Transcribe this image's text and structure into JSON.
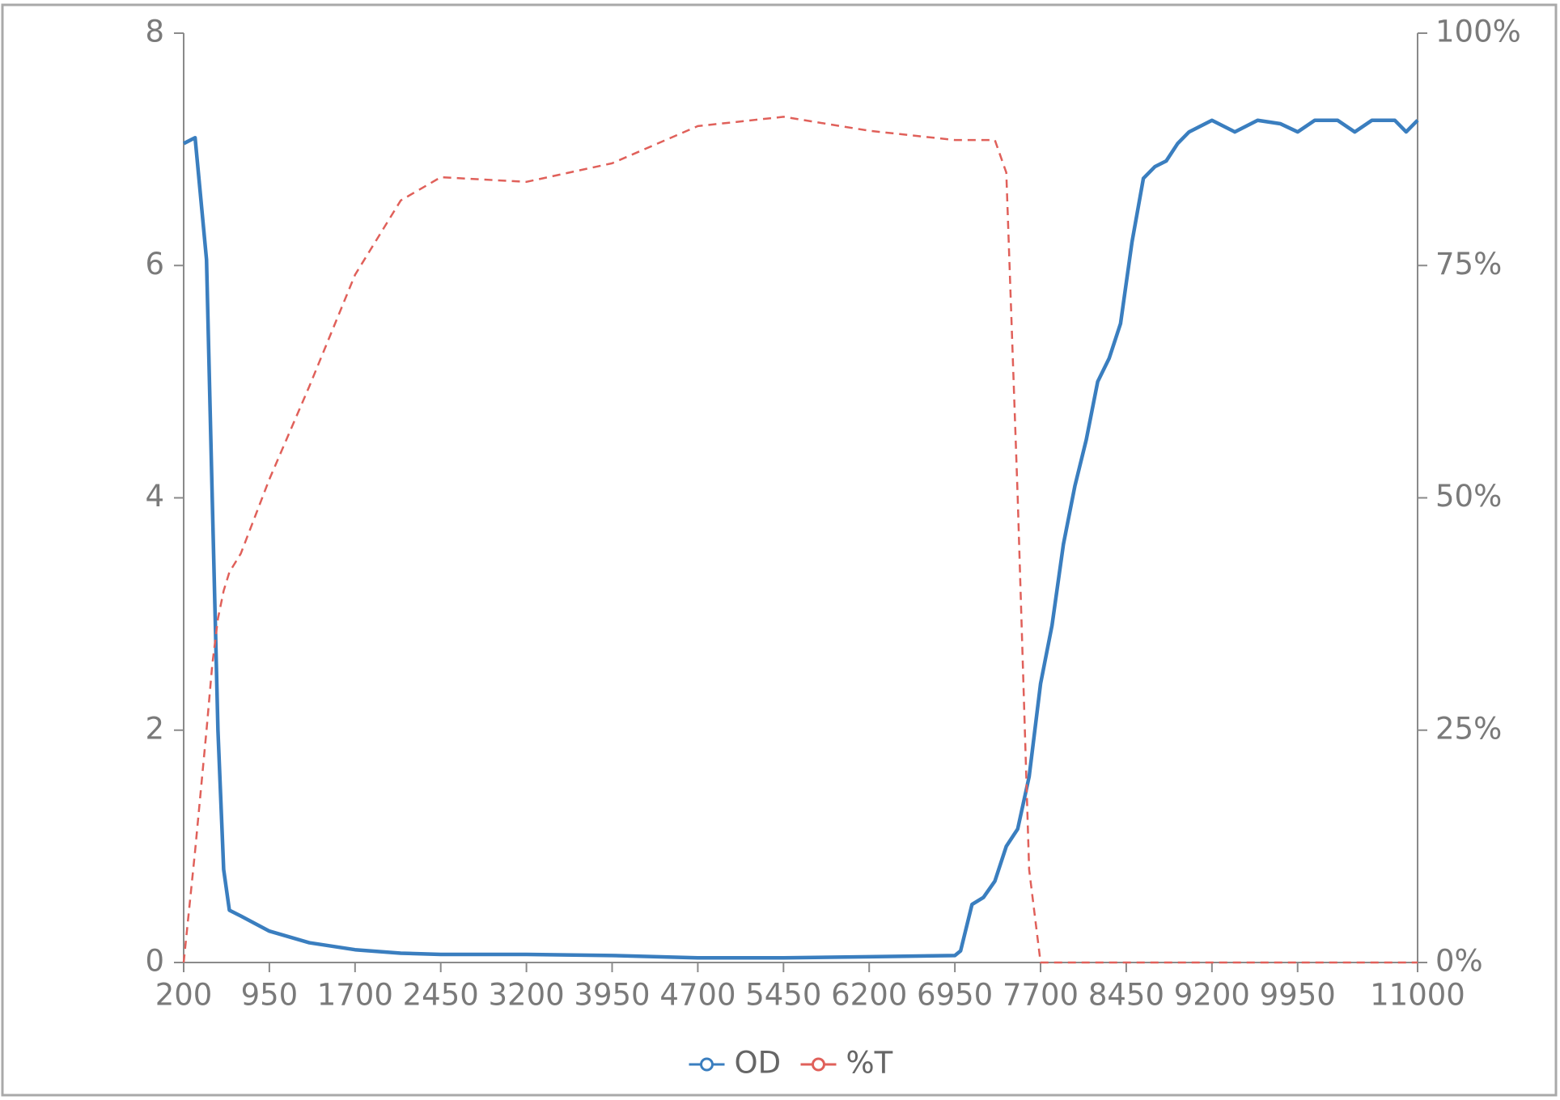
{
  "chart_data": {
    "type": "line",
    "x": [
      200,
      300,
      400,
      450,
      500,
      550,
      600,
      700,
      950,
      1300,
      1700,
      2100,
      2450,
      3200,
      3950,
      4700,
      5450,
      6200,
      6950,
      7000,
      7100,
      7200,
      7300,
      7400,
      7500,
      7600,
      7700,
      7800,
      7900,
      8000,
      8100,
      8200,
      8300,
      8400,
      8500,
      8600,
      8700,
      8800,
      8900,
      9000,
      9200,
      9400,
      9600,
      9800,
      9950,
      10100,
      10300,
      10450,
      10600,
      10800,
      10900,
      11000
    ],
    "series": [
      {
        "name": "OD",
        "color": "#3a7ebf",
        "dashed": false,
        "values": [
          7.05,
          7.1,
          6.05,
          4.0,
          2.0,
          0.8,
          0.45,
          0.4,
          0.27,
          0.17,
          0.11,
          0.08,
          0.07,
          0.07,
          0.06,
          0.04,
          0.04,
          0.05,
          0.06,
          0.1,
          0.5,
          0.56,
          0.7,
          1.0,
          1.15,
          1.6,
          2.4,
          2.9,
          3.6,
          4.1,
          4.5,
          5.0,
          5.2,
          5.5,
          6.2,
          6.75,
          6.85,
          6.9,
          7.05,
          7.15,
          7.25,
          7.15,
          7.25,
          7.22,
          7.15,
          7.25,
          7.25,
          7.15,
          7.25,
          7.25,
          7.15,
          7.25
        ]
      },
      {
        "name": "%T",
        "color": "#e0605a",
        "dashed": true,
        "axis": "y2",
        "values": [
          0,
          12,
          25,
          32,
          37,
          40,
          42,
          44,
          52,
          62,
          74,
          82,
          84.5,
          84,
          86,
          90,
          91,
          89.5,
          88.5,
          88.5,
          88.5,
          88.5,
          88.5,
          85,
          50,
          10,
          0,
          0,
          0,
          0,
          0,
          0,
          0,
          0,
          0,
          0,
          0,
          0,
          0,
          0,
          0,
          0,
          0,
          0,
          0,
          0,
          0,
          0,
          0,
          0,
          0,
          0
        ]
      }
    ],
    "xlim": [
      200,
      11000
    ],
    "xticks": [
      200,
      950,
      1700,
      2450,
      3200,
      3950,
      4700,
      5450,
      6200,
      6950,
      7700,
      8450,
      9200,
      9950,
      11000
    ],
    "ylim": [
      0,
      8
    ],
    "yticks": [
      0,
      2,
      4,
      6,
      8
    ],
    "y2lim": [
      0,
      100
    ],
    "y2ticks": [
      {
        "value": 0,
        "label": "0%"
      },
      {
        "value": 25,
        "label": "25%"
      },
      {
        "value": 50,
        "label": "50%"
      },
      {
        "value": 75,
        "label": "75%"
      },
      {
        "value": 100,
        "label": "100%"
      }
    ],
    "grid": false,
    "legend": "bottom"
  }
}
